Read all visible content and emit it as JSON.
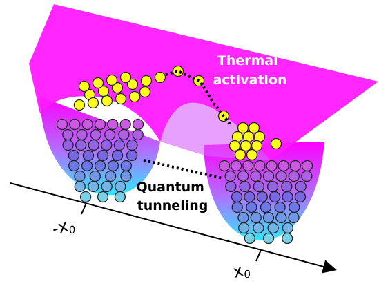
{
  "annotations": [
    {
      "lines": [
        "Thermal",
        "activation"
      ]
    },
    {
      "lines": [
        "Quantum",
        "tunneling"
      ]
    }
  ],
  "axis": {
    "ticks": [
      {
        "base": "-x",
        "sub": "0"
      },
      {
        "base": "x",
        "sub": "0"
      }
    ]
  }
}
